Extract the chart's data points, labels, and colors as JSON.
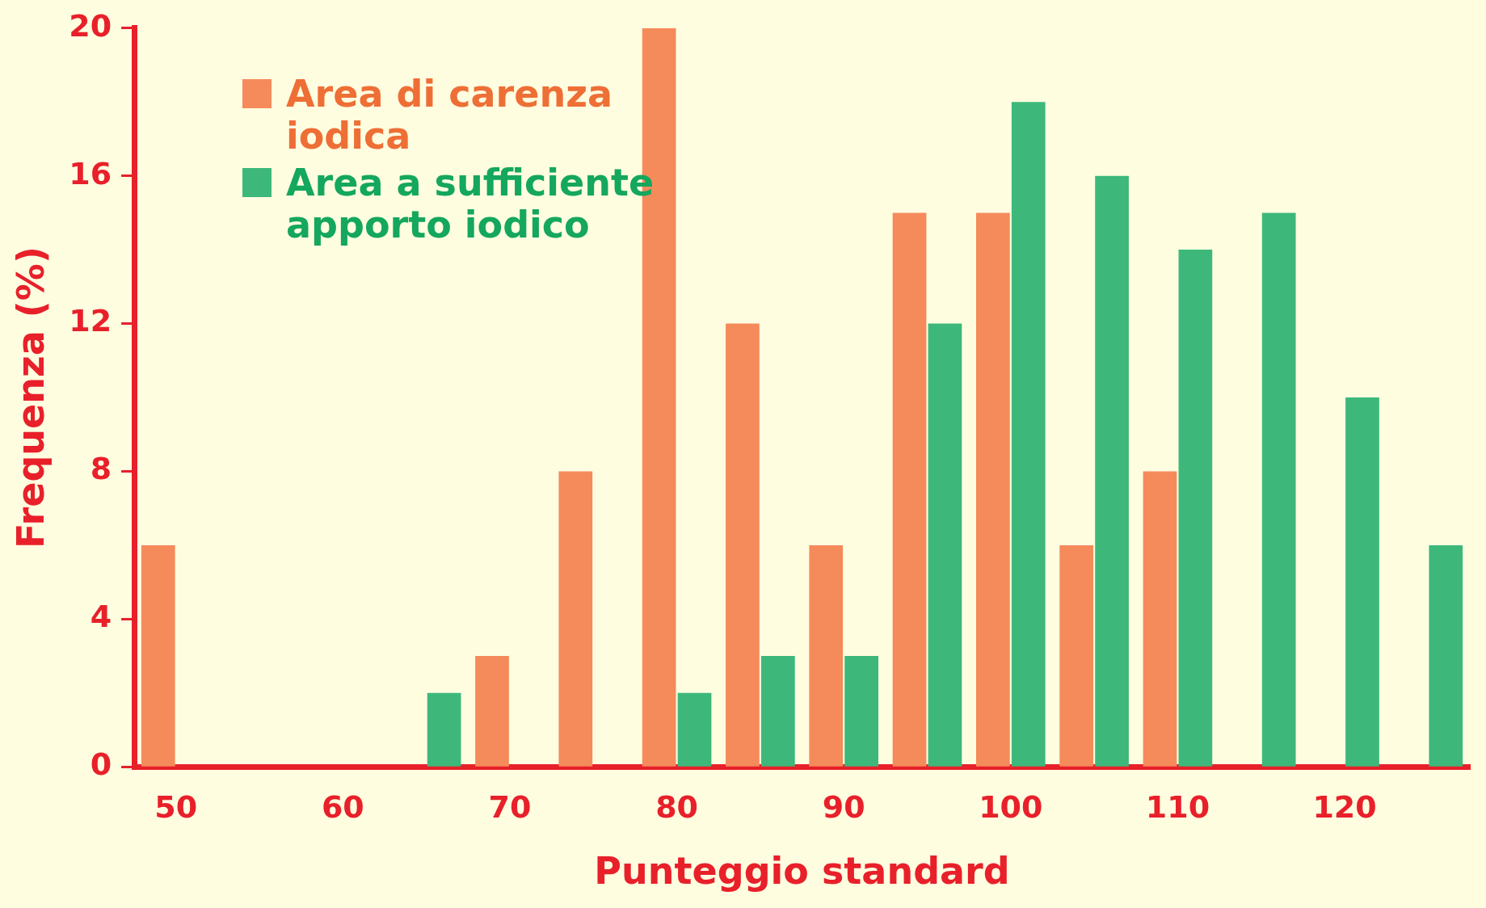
{
  "chart_data": {
    "type": "bar",
    "xlabel": "Punteggio standard",
    "ylabel": "Frequenza (%)",
    "categories": [
      "50",
      null,
      "60",
      null,
      "70",
      null,
      "80",
      null,
      "90",
      null,
      "100",
      null,
      "110",
      null,
      "120",
      null
    ],
    "series": [
      {
        "name": "Area di carenza iodica",
        "color": "#f58a5a",
        "values": [
          6,
          0,
          0,
          0,
          3,
          8,
          20,
          12,
          6,
          15,
          15,
          6,
          8,
          0,
          0,
          0
        ]
      },
      {
        "name": "Area a sufficiente apporto iodico",
        "color": "#3db87a",
        "values": [
          0,
          0,
          0,
          2,
          0,
          0,
          2,
          3,
          3,
          12,
          18,
          16,
          14,
          15,
          10,
          6
        ]
      }
    ],
    "ylim": [
      0,
      20
    ],
    "yticks": [
      0,
      4,
      8,
      12,
      16,
      20
    ],
    "grid": false,
    "legend": "top left"
  }
}
